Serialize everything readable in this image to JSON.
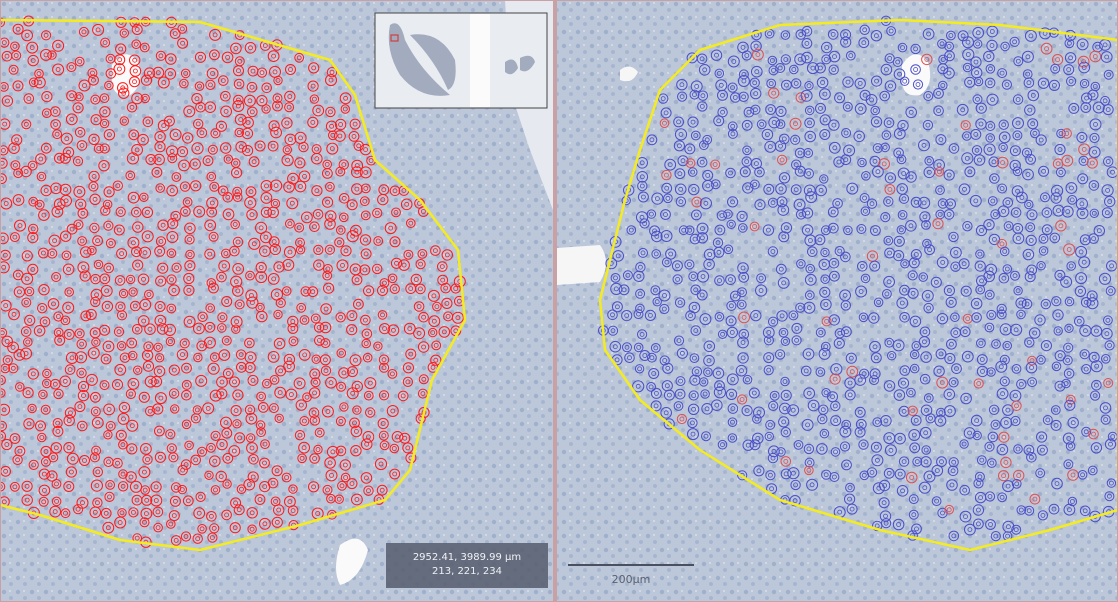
{
  "viewers": [
    {
      "cursor_info": {
        "position": "2952.41, 3989.99 µm",
        "rgb": "213, 221, 234"
      }
    },
    {
      "scale_bar": {
        "label": "200µm"
      }
    }
  ]
}
